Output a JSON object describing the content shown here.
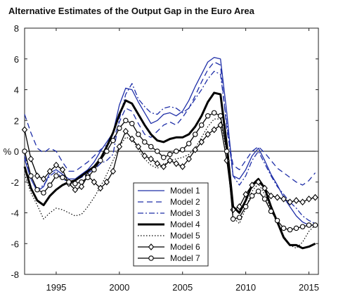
{
  "chart_data": {
    "type": "line",
    "title": "Alternative Estimates of the Output Gap in the Euro Area",
    "xlabel": "",
    "ylabel": "%",
    "xlim": [
      1992.5,
      2015.75
    ],
    "ylim": [
      -8,
      8
    ],
    "xticks": [
      1995,
      2000,
      2005,
      2010,
      2015
    ],
    "yticks": [
      -8,
      -6,
      -4,
      -2,
      0,
      2,
      4,
      6,
      8
    ],
    "grid": false,
    "legend_position": "bottom-center",
    "series": [
      {
        "name": "Model 1",
        "style": "solid-thin",
        "color": "#1f2fa8",
        "x": [
          1992.5,
          1993.0,
          1993.5,
          1994.0,
          1994.5,
          1995.0,
          1995.5,
          1996.0,
          1996.5,
          1997.0,
          1997.5,
          1998.0,
          1998.5,
          1999.0,
          1999.5,
          2000.0,
          2000.5,
          2001.0,
          2001.5,
          2002.0,
          2002.5,
          2003.0,
          2003.5,
          2004.0,
          2004.5,
          2005.0,
          2005.5,
          2006.0,
          2006.5,
          2007.0,
          2007.5,
          2008.0,
          2008.5,
          2009.0,
          2009.5,
          2010.0,
          2010.5,
          2011.0,
          2011.5,
          2012.0,
          2012.5,
          2013.0,
          2013.5,
          2014.0,
          2014.5,
          2015.0,
          2015.5
        ],
        "y": [
          -0.5,
          -1.8,
          -2.6,
          -2.3,
          -1.4,
          -1.2,
          -1.5,
          -1.8,
          -1.8,
          -1.5,
          -1.2,
          -0.7,
          0.0,
          0.6,
          1.2,
          3.0,
          4.1,
          4.0,
          3.2,
          2.5,
          1.8,
          2.0,
          2.4,
          2.5,
          2.3,
          2.6,
          3.3,
          4.2,
          5.0,
          5.8,
          6.1,
          6.0,
          2.5,
          -1.6,
          -1.8,
          -1.2,
          -0.3,
          0.2,
          -0.6,
          -1.5,
          -2.2,
          -3.0,
          -3.6,
          -4.2,
          -4.6,
          -4.8,
          -4.8
        ]
      },
      {
        "name": "Model 2",
        "style": "dashed",
        "color": "#1f2fa8",
        "x": [
          1992.5,
          1993.0,
          1993.5,
          1994.0,
          1994.5,
          1995.0,
          1995.5,
          1996.0,
          1996.5,
          1997.0,
          1997.5,
          1998.0,
          1998.5,
          1999.0,
          1999.5,
          2000.0,
          2000.5,
          2001.0,
          2001.5,
          2002.0,
          2002.5,
          2003.0,
          2003.5,
          2004.0,
          2004.5,
          2005.0,
          2005.5,
          2006.0,
          2006.5,
          2007.0,
          2007.5,
          2008.0,
          2008.5,
          2009.0,
          2009.5,
          2010.0,
          2010.5,
          2011.0,
          2011.5,
          2012.0,
          2012.5,
          2013.0,
          2013.5,
          2014.0,
          2014.5,
          2015.0,
          2015.5
        ],
        "y": [
          2.4,
          1.2,
          0.2,
          -0.1,
          0.2,
          0.0,
          -0.7,
          -1.3,
          -1.3,
          -1.0,
          -0.7,
          -0.3,
          0.1,
          0.4,
          0.7,
          1.9,
          2.8,
          2.6,
          1.8,
          1.1,
          0.9,
          1.3,
          1.7,
          1.9,
          1.7,
          2.2,
          2.8,
          3.6,
          4.5,
          5.3,
          5.8,
          5.6,
          1.4,
          -0.9,
          -1.2,
          -0.6,
          0.0,
          0.3,
          -0.1,
          -0.6,
          -1.1,
          -1.4,
          -1.7,
          -2.0,
          -2.2,
          -1.9,
          -1.4
        ]
      },
      {
        "name": "Model 3",
        "style": "dashdot",
        "color": "#1f2fa8",
        "x": [
          1992.5,
          1993.0,
          1993.5,
          1994.0,
          1994.5,
          1995.0,
          1995.5,
          1996.0,
          1996.5,
          1997.0,
          1997.5,
          1998.0,
          1998.5,
          1999.0,
          1999.5,
          2000.0,
          2000.5,
          2001.0,
          2001.5,
          2002.0,
          2002.5,
          2003.0,
          2003.5,
          2004.0,
          2004.5,
          2005.0,
          2005.5,
          2006.0,
          2006.5,
          2007.0,
          2007.5,
          2008.0,
          2008.5,
          2009.0,
          2009.5,
          2010.0,
          2010.5,
          2011.0,
          2011.5,
          2012.0,
          2012.5,
          2013.0,
          2013.5,
          2014.0,
          2014.5,
          2015.0,
          2015.5
        ],
        "y": [
          -0.3,
          -1.6,
          -2.5,
          -2.2,
          -1.6,
          -1.3,
          -1.8,
          -2.0,
          -1.9,
          -1.7,
          -1.4,
          -1.2,
          -0.8,
          -0.6,
          -0.2,
          2.1,
          3.7,
          4.4,
          3.4,
          2.9,
          2.5,
          2.4,
          2.8,
          2.9,
          2.8,
          2.5,
          2.8,
          3.4,
          4.0,
          4.7,
          5.2,
          5.0,
          1.8,
          -1.6,
          -2.2,
          -1.6,
          -0.6,
          0.0,
          -0.8,
          -1.6,
          -2.3,
          -2.8,
          -3.3,
          -3.7,
          -4.2,
          -4.5,
          -4.7
        ]
      },
      {
        "name": "Model 4",
        "style": "solid-thick",
        "color": "#000000",
        "x": [
          1992.5,
          1993.0,
          1993.5,
          1994.0,
          1994.5,
          1995.0,
          1995.5,
          1996.0,
          1996.5,
          1997.0,
          1997.5,
          1998.0,
          1998.5,
          1999.0,
          1999.5,
          2000.0,
          2000.5,
          2001.0,
          2001.5,
          2002.0,
          2002.5,
          2003.0,
          2003.5,
          2004.0,
          2004.5,
          2005.0,
          2005.5,
          2006.0,
          2006.5,
          2007.0,
          2007.5,
          2008.0,
          2008.5,
          2009.0,
          2009.5,
          2010.0,
          2010.5,
          2011.0,
          2011.5,
          2012.0,
          2012.5,
          2013.0,
          2013.5,
          2014.0,
          2014.5,
          2015.0,
          2015.5
        ],
        "y": [
          -1.0,
          -2.4,
          -3.2,
          -3.5,
          -2.9,
          -2.5,
          -2.2,
          -2.0,
          -1.9,
          -1.6,
          -1.3,
          -1.0,
          -0.5,
          0.3,
          1.2,
          2.4,
          3.3,
          3.1,
          2.4,
          1.7,
          1.1,
          0.7,
          0.6,
          0.8,
          0.9,
          0.9,
          1.1,
          1.6,
          2.3,
          3.2,
          3.8,
          3.7,
          0.4,
          -3.6,
          -4.0,
          -3.2,
          -2.2,
          -1.8,
          -2.4,
          -3.6,
          -4.6,
          -5.6,
          -6.1,
          -6.1,
          -6.3,
          -6.2,
          -6.0
        ]
      },
      {
        "name": "Model 5",
        "style": "dotted",
        "color": "#000000",
        "x": [
          1992.5,
          1993.0,
          1993.5,
          1994.0,
          1994.5,
          1995.0,
          1995.5,
          1996.0,
          1996.5,
          1997.0,
          1997.5,
          1998.0,
          1998.5,
          1999.0,
          1999.5,
          2000.0,
          2000.5,
          2001.0,
          2001.5,
          2002.0,
          2002.5,
          2003.0,
          2003.5,
          2004.0,
          2004.5,
          2005.0,
          2005.5,
          2006.0,
          2006.5,
          2007.0,
          2007.5,
          2008.0,
          2008.5,
          2009.0,
          2009.5,
          2010.0,
          2010.5,
          2011.0,
          2011.5,
          2012.0,
          2012.5,
          2013.0,
          2013.5,
          2014.0,
          2014.5,
          2015.0,
          2015.5
        ],
        "y": [
          -1.5,
          -2.7,
          -3.5,
          -4.4,
          -4.0,
          -3.7,
          -3.8,
          -4.0,
          -4.2,
          -4.1,
          -3.6,
          -3.0,
          -2.3,
          -1.5,
          -0.6,
          0.3,
          0.9,
          0.8,
          0.1,
          -0.5,
          -0.9,
          -1.1,
          -0.9,
          -0.6,
          -0.5,
          -0.4,
          -0.2,
          0.2,
          0.9,
          1.6,
          2.1,
          2.1,
          -0.1,
          -4.3,
          -4.7,
          -3.7,
          -2.6,
          -2.1,
          -2.8,
          -3.8,
          -4.7,
          -5.5,
          -6.1,
          -6.3,
          -5.9,
          -5.2,
          -4.8
        ]
      },
      {
        "name": "Model 6",
        "style": "solid-diamond",
        "color": "#000000",
        "x": [
          1992.5,
          1993.0,
          1993.5,
          1994.0,
          1994.5,
          1995.0,
          1995.5,
          1996.0,
          1996.5,
          1997.0,
          1997.5,
          1998.0,
          1998.5,
          1999.0,
          1999.5,
          2000.0,
          2000.5,
          2001.0,
          2001.5,
          2002.0,
          2002.5,
          2003.0,
          2003.5,
          2004.0,
          2004.5,
          2005.0,
          2005.5,
          2006.0,
          2006.5,
          2007.0,
          2007.5,
          2008.0,
          2008.5,
          2009.0,
          2009.5,
          2010.0,
          2010.5,
          2011.0,
          2011.5,
          2012.0,
          2012.5,
          2013.0,
          2013.5,
          2014.0,
          2014.5,
          2015.0,
          2015.5
        ],
        "y": [
          1.4,
          -0.5,
          -1.6,
          -1.8,
          -1.3,
          -0.9,
          -1.2,
          -2.1,
          -2.5,
          -2.3,
          -1.6,
          -2.0,
          -2.4,
          -2.0,
          -1.3,
          0.3,
          1.3,
          0.8,
          0.3,
          -0.3,
          -0.5,
          -0.8,
          -1.0,
          -0.6,
          -0.8,
          -1.0,
          -0.5,
          0.1,
          0.6,
          1.1,
          1.4,
          1.7,
          -0.6,
          -3.8,
          -3.6,
          -2.8,
          -2.2,
          -2.0,
          -2.4,
          -2.9,
          -3.0,
          -3.1,
          -3.3,
          -3.2,
          -3.3,
          -3.1,
          -3.0
        ]
      },
      {
        "name": "Model 7",
        "style": "solid-circle",
        "color": "#000000",
        "x": [
          1992.5,
          1993.0,
          1993.5,
          1994.0,
          1994.5,
          1995.0,
          1995.5,
          1996.0,
          1996.5,
          1997.0,
          1997.5,
          1998.0,
          1998.5,
          1999.0,
          1999.5,
          2000.0,
          2000.5,
          2001.0,
          2001.5,
          2002.0,
          2002.5,
          2003.0,
          2003.5,
          2004.0,
          2004.5,
          2005.0,
          2005.5,
          2006.0,
          2006.5,
          2007.0,
          2007.5,
          2008.0,
          2008.5,
          2009.0,
          2009.5,
          2010.0,
          2010.5,
          2011.0,
          2011.5,
          2012.0,
          2012.5,
          2013.0,
          2013.5,
          2014.0,
          2014.5,
          2015.0,
          2015.5
        ],
        "y": [
          0.0,
          -1.6,
          -2.5,
          -2.7,
          -2.2,
          -1.6,
          -1.7,
          -2.0,
          -2.1,
          -2.0,
          -1.7,
          -1.2,
          -0.6,
          0.0,
          0.7,
          1.5,
          2.0,
          1.8,
          1.1,
          0.6,
          0.3,
          0.0,
          -0.4,
          -0.2,
          0.0,
          0.1,
          0.5,
          1.1,
          1.7,
          2.3,
          2.5,
          2.3,
          0.0,
          -4.4,
          -4.3,
          -3.6,
          -2.9,
          -2.6,
          -3.1,
          -3.9,
          -4.5,
          -5.0,
          -5.1,
          -5.0,
          -4.9,
          -4.8,
          -4.8
        ]
      }
    ]
  }
}
